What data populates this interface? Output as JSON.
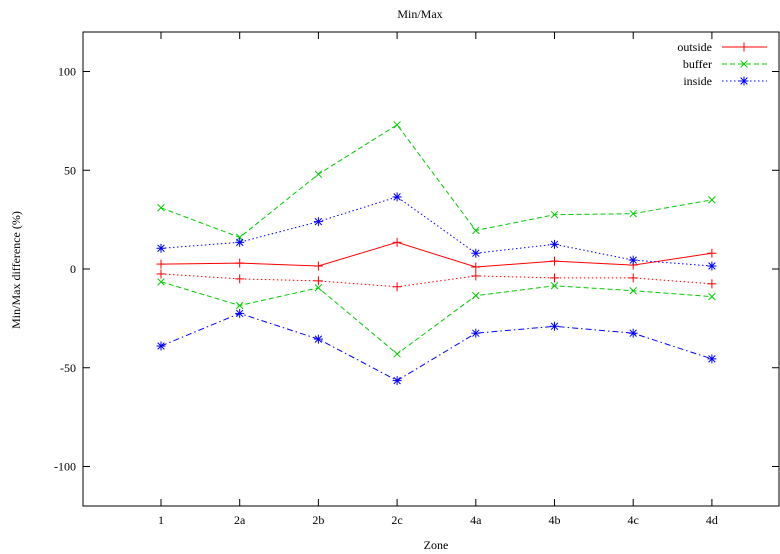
{
  "chart_data": {
    "type": "line",
    "title": "Min/Max",
    "xlabel": "Zone",
    "ylabel": "Min/Max difference (%)",
    "categories": [
      "1",
      "2a",
      "2b",
      "2c",
      "4a",
      "4b",
      "4c",
      "4d"
    ],
    "ylim": [
      -120,
      120
    ],
    "yticks": [
      -100,
      -50,
      0,
      50,
      100
    ],
    "grid": false,
    "legend_position": "top-right",
    "series": [
      {
        "name": "outside",
        "role": "max",
        "color": "#ff0000",
        "dash": "solid",
        "marker": "plus",
        "values": [
          2.5,
          3.0,
          1.5,
          13.5,
          1.0,
          4.0,
          2.0,
          8.0
        ]
      },
      {
        "name": "",
        "role": "min",
        "color": "#ff0000",
        "dash": "dotted",
        "marker": "plus",
        "values": [
          -2.5,
          -5.0,
          -6.0,
          -9.0,
          -3.5,
          -4.5,
          -4.5,
          -7.5
        ]
      },
      {
        "name": "buffer",
        "role": "max",
        "color": "#00cc00",
        "dash": "dashed",
        "marker": "cross",
        "values": [
          31.0,
          16.0,
          48.0,
          73.0,
          19.5,
          27.5,
          28.0,
          35.0
        ]
      },
      {
        "name": "",
        "role": "min",
        "color": "#00cc00",
        "dash": "dashed",
        "marker": "cross",
        "values": [
          -6.5,
          -18.5,
          -9.5,
          -43.0,
          -13.5,
          -8.5,
          -11.0,
          -14.0
        ]
      },
      {
        "name": "inside",
        "role": "max",
        "color": "#0000ff",
        "dash": "dotted",
        "marker": "star",
        "values": [
          10.5,
          13.5,
          24.0,
          36.5,
          8.0,
          12.5,
          4.5,
          1.5
        ]
      },
      {
        "name": "",
        "role": "min",
        "color": "#0000ff",
        "dash": "dashdot",
        "marker": "star",
        "values": [
          -39.0,
          -22.5,
          -35.5,
          -56.5,
          -32.5,
          -29.0,
          -32.5,
          -45.5
        ]
      }
    ]
  }
}
